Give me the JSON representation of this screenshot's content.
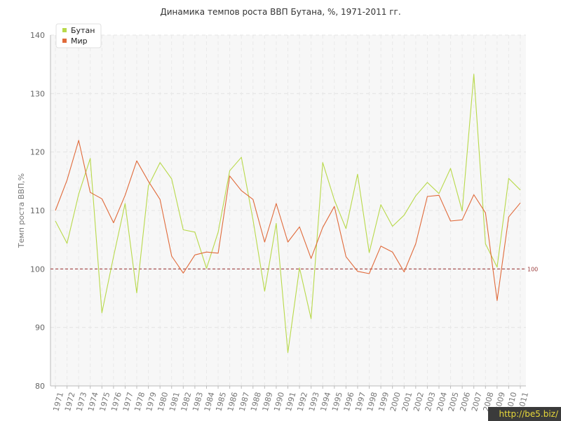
{
  "chart_data": {
    "type": "line",
    "title": "Динамика темпов роста ВВП Бутана, %, 1971-2011 гг.",
    "ylabel": "Темп роста ВВП,%",
    "xlabel": "",
    "ylim": [
      80,
      140
    ],
    "yticks": [
      80,
      90,
      100,
      110,
      120,
      130,
      140
    ],
    "grid": true,
    "legend": "top-left",
    "reference_line": {
      "value": 100,
      "label": "100",
      "color": "#a04040"
    },
    "x": [
      1971,
      1972,
      1973,
      1974,
      1975,
      1976,
      1977,
      1978,
      1979,
      1980,
      1981,
      1982,
      1983,
      1984,
      1985,
      1986,
      1987,
      1988,
      1989,
      1990,
      1991,
      1992,
      1993,
      1994,
      1995,
      1996,
      1997,
      1998,
      1999,
      2000,
      2001,
      2002,
      2003,
      2004,
      2005,
      2006,
      2007,
      2008,
      2009,
      2010,
      2011
    ],
    "series": [
      {
        "name": "Бутан",
        "color": "#b8d94a",
        "values": [
          108.2,
          104.4,
          112.8,
          118.9,
          92.5,
          102.1,
          111.2,
          95.9,
          114.2,
          118.2,
          115.4,
          106.7,
          106.3,
          100.1,
          106.3,
          116.8,
          119.1,
          108.4,
          96.2,
          107.8,
          85.7,
          100.2,
          91.5,
          118.2,
          111.8,
          106.9,
          116.2,
          102.8,
          111,
          107.3,
          109.2,
          112.5,
          114.8,
          112.9,
          117.2,
          109.9,
          133.3,
          104.3,
          100.3,
          115.5,
          113.5
        ]
      },
      {
        "name": "Мир",
        "color": "#e06a3a",
        "values": [
          110,
          115.2,
          122,
          113.1,
          112,
          107.9,
          112.6,
          118.5,
          115,
          111.9,
          102.2,
          99.3,
          102.4,
          102.9,
          102.7,
          115.9,
          113.4,
          111.9,
          104.6,
          111.2,
          104.6,
          107.2,
          101.8,
          107.1,
          110.7,
          102.1,
          99.6,
          99.2,
          103.9,
          102.9,
          99.5,
          104.3,
          112.4,
          112.6,
          108.2,
          108.4,
          112.7,
          109.6,
          94.6,
          108.9,
          111.3
        ]
      }
    ]
  },
  "watermark": "http://be5.biz/"
}
